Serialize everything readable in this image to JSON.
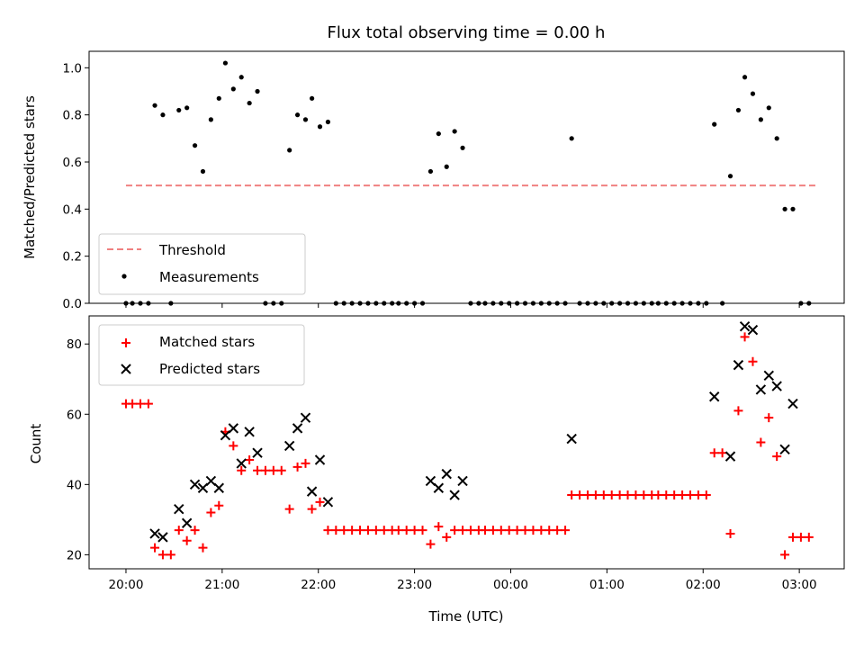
{
  "chart_data": [
    {
      "type": "scatter",
      "title": "Flux total observing time = 0.00 h",
      "xlabel": "",
      "ylabel": "Matched/Predicted stars",
      "xlim": [
        "19:37",
        "03:28"
      ],
      "ylim": [
        0.0,
        1.07
      ],
      "yticks": [
        0.0,
        0.2,
        0.4,
        0.6,
        0.8,
        1.0
      ],
      "yticklabels": [
        "0.0",
        "0.2",
        "0.4",
        "0.6",
        "0.8",
        "1.0"
      ],
      "legend": {
        "placement": "lower-left",
        "entries": [
          "Threshold",
          "Measurements"
        ]
      },
      "series": [
        {
          "name": "Threshold",
          "kind": "dashed-line",
          "color": "#f08080",
          "points": [
            [
              "20:00",
              0.5
            ],
            [
              "03:10",
              0.5
            ]
          ]
        },
        {
          "name": "Measurements",
          "kind": "dots",
          "color": "#000000",
          "points": [
            [
              "20:00",
              0
            ],
            [
              "20:04",
              0
            ],
            [
              "20:09",
              0
            ],
            [
              "20:14",
              0
            ],
            [
              "20:18",
              0.84
            ],
            [
              "20:23",
              0.8
            ],
            [
              "20:28",
              0
            ],
            [
              "20:33",
              0.82
            ],
            [
              "20:38",
              0.83
            ],
            [
              "20:43",
              0.67
            ],
            [
              "20:48",
              0.56
            ],
            [
              "20:53",
              0.78
            ],
            [
              "20:58",
              0.87
            ],
            [
              "21:02",
              1.02
            ],
            [
              "21:07",
              0.91
            ],
            [
              "21:12",
              0.96
            ],
            [
              "21:17",
              0.85
            ],
            [
              "21:22",
              0.9
            ],
            [
              "21:27",
              0
            ],
            [
              "21:32",
              0
            ],
            [
              "21:37",
              0
            ],
            [
              "21:42",
              0.65
            ],
            [
              "21:47",
              0.8
            ],
            [
              "21:52",
              0.78
            ],
            [
              "21:56",
              0.87
            ],
            [
              "22:01",
              0.75
            ],
            [
              "22:06",
              0.77
            ],
            [
              "22:11",
              0
            ],
            [
              "22:16",
              0
            ],
            [
              "22:21",
              0
            ],
            [
              "22:26",
              0
            ],
            [
              "22:31",
              0
            ],
            [
              "22:36",
              0
            ],
            [
              "22:41",
              0
            ],
            [
              "22:46",
              0
            ],
            [
              "22:50",
              0
            ],
            [
              "22:55",
              0
            ],
            [
              "23:00",
              0
            ],
            [
              "23:05",
              0
            ],
            [
              "23:10",
              0.56
            ],
            [
              "23:15",
              0.72
            ],
            [
              "23:20",
              0.58
            ],
            [
              "23:25",
              0.73
            ],
            [
              "23:30",
              0.66
            ],
            [
              "23:35",
              0
            ],
            [
              "23:40",
              0
            ],
            [
              "23:44",
              0
            ],
            [
              "23:49",
              0
            ],
            [
              "23:54",
              0
            ],
            [
              "23:59",
              0
            ],
            [
              "00:04",
              0
            ],
            [
              "00:09",
              0
            ],
            [
              "00:14",
              0
            ],
            [
              "00:19",
              0
            ],
            [
              "00:24",
              0
            ],
            [
              "00:29",
              0
            ],
            [
              "00:34",
              0
            ],
            [
              "00:38",
              0.7
            ],
            [
              "00:43",
              0
            ],
            [
              "00:48",
              0
            ],
            [
              "00:53",
              0
            ],
            [
              "00:58",
              0
            ],
            [
              "01:03",
              0
            ],
            [
              "01:08",
              0
            ],
            [
              "01:13",
              0
            ],
            [
              "01:18",
              0
            ],
            [
              "01:23",
              0
            ],
            [
              "01:28",
              0
            ],
            [
              "01:32",
              0
            ],
            [
              "01:37",
              0
            ],
            [
              "01:42",
              0
            ],
            [
              "01:47",
              0
            ],
            [
              "01:52",
              0
            ],
            [
              "01:57",
              0
            ],
            [
              "02:02",
              0
            ],
            [
              "02:07",
              0.76
            ],
            [
              "02:12",
              0
            ],
            [
              "02:17",
              0.54
            ],
            [
              "02:22",
              0.82
            ],
            [
              "02:26",
              0.96
            ],
            [
              "02:31",
              0.89
            ],
            [
              "02:36",
              0.78
            ],
            [
              "02:41",
              0.83
            ],
            [
              "02:46",
              0.7
            ],
            [
              "02:51",
              0.4
            ],
            [
              "02:56",
              0.4
            ],
            [
              "03:01",
              0
            ],
            [
              "03:06",
              0
            ]
          ]
        }
      ]
    },
    {
      "type": "scatter",
      "title": "",
      "xlabel": "Time (UTC)",
      "ylabel": "Count",
      "xlim": [
        "19:37",
        "03:28"
      ],
      "ylim": [
        16,
        88
      ],
      "yticks": [
        20,
        40,
        60,
        80
      ],
      "yticklabels": [
        "20",
        "40",
        "60",
        "80"
      ],
      "xticks": [
        "20:00",
        "21:00",
        "22:00",
        "23:00",
        "00:00",
        "01:00",
        "02:00",
        "03:00"
      ],
      "legend": {
        "placement": "top-left",
        "entries": [
          "Matched stars",
          "Predicted stars"
        ]
      },
      "series": [
        {
          "name": "Matched stars",
          "kind": "plus",
          "color": "#ff0000",
          "points": [
            [
              "20:00",
              63
            ],
            [
              "20:04",
              63
            ],
            [
              "20:09",
              63
            ],
            [
              "20:14",
              63
            ],
            [
              "20:18",
              22
            ],
            [
              "20:23",
              20
            ],
            [
              "20:28",
              20
            ],
            [
              "20:33",
              27
            ],
            [
              "20:38",
              24
            ],
            [
              "20:43",
              27
            ],
            [
              "20:48",
              22
            ],
            [
              "20:53",
              32
            ],
            [
              "20:58",
              34
            ],
            [
              "21:02",
              55
            ],
            [
              "21:07",
              51
            ],
            [
              "21:12",
              44
            ],
            [
              "21:17",
              47
            ],
            [
              "21:22",
              44
            ],
            [
              "21:27",
              44
            ],
            [
              "21:32",
              44
            ],
            [
              "21:37",
              44
            ],
            [
              "21:42",
              33
            ],
            [
              "21:47",
              45
            ],
            [
              "21:52",
              46
            ],
            [
              "21:56",
              33
            ],
            [
              "22:01",
              35
            ],
            [
              "22:06",
              27
            ],
            [
              "22:11",
              27
            ],
            [
              "22:16",
              27
            ],
            [
              "22:21",
              27
            ],
            [
              "22:26",
              27
            ],
            [
              "22:31",
              27
            ],
            [
              "22:36",
              27
            ],
            [
              "22:41",
              27
            ],
            [
              "22:46",
              27
            ],
            [
              "22:50",
              27
            ],
            [
              "22:55",
              27
            ],
            [
              "23:00",
              27
            ],
            [
              "23:05",
              27
            ],
            [
              "23:10",
              23
            ],
            [
              "23:15",
              28
            ],
            [
              "23:20",
              25
            ],
            [
              "23:25",
              27
            ],
            [
              "23:30",
              27
            ],
            [
              "23:35",
              27
            ],
            [
              "23:40",
              27
            ],
            [
              "23:44",
              27
            ],
            [
              "23:49",
              27
            ],
            [
              "23:54",
              27
            ],
            [
              "23:59",
              27
            ],
            [
              "00:04",
              27
            ],
            [
              "00:09",
              27
            ],
            [
              "00:14",
              27
            ],
            [
              "00:19",
              27
            ],
            [
              "00:24",
              27
            ],
            [
              "00:29",
              27
            ],
            [
              "00:34",
              27
            ],
            [
              "00:38",
              37
            ],
            [
              "00:43",
              37
            ],
            [
              "00:48",
              37
            ],
            [
              "00:53",
              37
            ],
            [
              "00:58",
              37
            ],
            [
              "01:03",
              37
            ],
            [
              "01:08",
              37
            ],
            [
              "01:13",
              37
            ],
            [
              "01:18",
              37
            ],
            [
              "01:23",
              37
            ],
            [
              "01:28",
              37
            ],
            [
              "01:32",
              37
            ],
            [
              "01:37",
              37
            ],
            [
              "01:42",
              37
            ],
            [
              "01:47",
              37
            ],
            [
              "01:52",
              37
            ],
            [
              "01:57",
              37
            ],
            [
              "02:02",
              37
            ],
            [
              "02:07",
              49
            ],
            [
              "02:12",
              49
            ],
            [
              "02:17",
              26
            ],
            [
              "02:22",
              61
            ],
            [
              "02:26",
              82
            ],
            [
              "02:31",
              75
            ],
            [
              "02:36",
              52
            ],
            [
              "02:41",
              59
            ],
            [
              "02:46",
              48
            ],
            [
              "02:51",
              20
            ],
            [
              "02:56",
              25
            ],
            [
              "03:01",
              25
            ],
            [
              "03:06",
              25
            ]
          ]
        },
        {
          "name": "Predicted stars",
          "kind": "x",
          "color": "#000000",
          "points": [
            [
              "20:18",
              26
            ],
            [
              "20:23",
              25
            ],
            [
              "20:33",
              33
            ],
            [
              "20:38",
              29
            ],
            [
              "20:43",
              40
            ],
            [
              "20:48",
              39
            ],
            [
              "20:53",
              41
            ],
            [
              "20:58",
              39
            ],
            [
              "21:02",
              54
            ],
            [
              "21:07",
              56
            ],
            [
              "21:12",
              46
            ],
            [
              "21:17",
              55
            ],
            [
              "21:22",
              49
            ],
            [
              "21:42",
              51
            ],
            [
              "21:47",
              56
            ],
            [
              "21:52",
              59
            ],
            [
              "21:56",
              38
            ],
            [
              "22:01",
              47
            ],
            [
              "22:06",
              35
            ],
            [
              "23:10",
              41
            ],
            [
              "23:15",
              39
            ],
            [
              "23:20",
              43
            ],
            [
              "23:25",
              37
            ],
            [
              "23:30",
              41
            ],
            [
              "00:38",
              53
            ],
            [
              "02:07",
              65
            ],
            [
              "02:17",
              48
            ],
            [
              "02:22",
              74
            ],
            [
              "02:26",
              85
            ],
            [
              "02:31",
              84
            ],
            [
              "02:36",
              67
            ],
            [
              "02:41",
              71
            ],
            [
              "02:46",
              68
            ],
            [
              "02:51",
              50
            ],
            [
              "02:56",
              63
            ]
          ]
        }
      ]
    }
  ]
}
